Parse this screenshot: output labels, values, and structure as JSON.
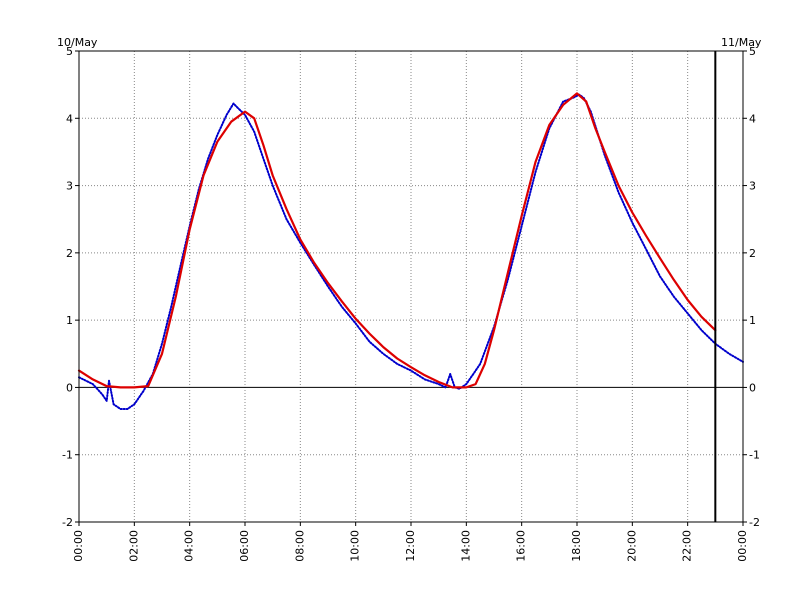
{
  "chart_data": {
    "type": "line",
    "title": "",
    "xlabel": "",
    "ylabel": "",
    "date_labels": {
      "left": "10/May",
      "right": "11/May"
    },
    "xlim": [
      "00:00",
      "24:00"
    ],
    "ylim": [
      -2,
      5
    ],
    "x_tick_labels": [
      "00:00",
      "02:00",
      "04:00",
      "06:00",
      "08:00",
      "10:00",
      "12:00",
      "14:00",
      "16:00",
      "18:00",
      "20:00",
      "22:00",
      "00:00"
    ],
    "y_tick_labels": [
      "-2",
      "-1",
      "0",
      "1",
      "2",
      "3",
      "4",
      "5"
    ],
    "y_ticks": [
      -2,
      -1,
      0,
      1,
      2,
      3,
      4,
      5
    ],
    "grid": true,
    "grid_style": "dotted",
    "now_marker": {
      "x": "23:00",
      "color": "#000000"
    },
    "series": [
      {
        "style": "dotted",
        "color": "#0000cc",
        "points": [
          [
            "00:00",
            0.15
          ],
          [
            "00:30",
            0.05
          ],
          [
            "00:50",
            -0.1
          ],
          [
            "01:00",
            -0.2
          ],
          [
            "01:05",
            0.1
          ],
          [
            "01:15",
            -0.25
          ],
          [
            "01:30",
            -0.32
          ],
          [
            "01:45",
            -0.32
          ],
          [
            "02:00",
            -0.25
          ],
          [
            "02:20",
            -0.05
          ],
          [
            "02:40",
            0.2
          ],
          [
            "03:00",
            0.65
          ],
          [
            "03:20",
            1.2
          ],
          [
            "03:40",
            1.8
          ],
          [
            "04:00",
            2.4
          ],
          [
            "04:20",
            2.95
          ],
          [
            "04:40",
            3.4
          ],
          [
            "05:00",
            3.75
          ],
          [
            "05:20",
            4.05
          ],
          [
            "05:35",
            4.22
          ],
          [
            "05:45",
            4.15
          ],
          [
            "06:00",
            4.05
          ],
          [
            "06:20",
            3.8
          ],
          [
            "06:40",
            3.4
          ],
          [
            "07:00",
            3.0
          ],
          [
            "07:30",
            2.5
          ],
          [
            "08:00",
            2.15
          ],
          [
            "08:30",
            1.82
          ],
          [
            "09:00",
            1.5
          ],
          [
            "09:30",
            1.2
          ],
          [
            "10:00",
            0.95
          ],
          [
            "10:30",
            0.68
          ],
          [
            "11:00",
            0.5
          ],
          [
            "11:30",
            0.35
          ],
          [
            "12:00",
            0.25
          ],
          [
            "12:30",
            0.12
          ],
          [
            "13:00",
            0.05
          ],
          [
            "13:15",
            0.0
          ],
          [
            "13:25",
            0.2
          ],
          [
            "13:35",
            0.0
          ],
          [
            "13:45",
            -0.02
          ],
          [
            "14:00",
            0.05
          ],
          [
            "14:15",
            0.2
          ],
          [
            "14:30",
            0.35
          ],
          [
            "15:00",
            0.9
          ],
          [
            "15:30",
            1.6
          ],
          [
            "16:00",
            2.4
          ],
          [
            "16:30",
            3.2
          ],
          [
            "17:00",
            3.85
          ],
          [
            "17:30",
            4.25
          ],
          [
            "17:50",
            4.3
          ],
          [
            "18:05",
            4.35
          ],
          [
            "18:15",
            4.3
          ],
          [
            "18:30",
            4.1
          ],
          [
            "19:00",
            3.45
          ],
          [
            "19:30",
            2.9
          ],
          [
            "20:00",
            2.45
          ],
          [
            "20:30",
            2.05
          ],
          [
            "21:00",
            1.65
          ],
          [
            "21:30",
            1.35
          ],
          [
            "22:00",
            1.1
          ],
          [
            "22:30",
            0.85
          ],
          [
            "23:00",
            0.65
          ],
          [
            "23:30",
            0.5
          ],
          [
            "24:00",
            0.38
          ]
        ]
      },
      {
        "style": "solid",
        "color": "#dd0000",
        "points": [
          [
            "00:00",
            0.25
          ],
          [
            "00:30",
            0.12
          ],
          [
            "01:00",
            0.02
          ],
          [
            "01:30",
            0.0
          ],
          [
            "02:00",
            0.0
          ],
          [
            "02:30",
            0.02
          ],
          [
            "03:00",
            0.5
          ],
          [
            "03:30",
            1.35
          ],
          [
            "04:00",
            2.35
          ],
          [
            "04:30",
            3.15
          ],
          [
            "05:00",
            3.65
          ],
          [
            "05:30",
            3.95
          ],
          [
            "06:00",
            4.1
          ],
          [
            "06:20",
            4.0
          ],
          [
            "06:40",
            3.6
          ],
          [
            "07:00",
            3.15
          ],
          [
            "07:30",
            2.65
          ],
          [
            "08:00",
            2.2
          ],
          [
            "08:30",
            1.85
          ],
          [
            "09:00",
            1.55
          ],
          [
            "09:30",
            1.28
          ],
          [
            "10:00",
            1.02
          ],
          [
            "10:30",
            0.8
          ],
          [
            "11:00",
            0.6
          ],
          [
            "11:30",
            0.43
          ],
          [
            "12:00",
            0.3
          ],
          [
            "12:30",
            0.18
          ],
          [
            "13:00",
            0.08
          ],
          [
            "13:30",
            0.0
          ],
          [
            "14:00",
            0.0
          ],
          [
            "14:20",
            0.05
          ],
          [
            "14:40",
            0.35
          ],
          [
            "15:00",
            0.85
          ],
          [
            "15:30",
            1.7
          ],
          [
            "16:00",
            2.55
          ],
          [
            "16:30",
            3.35
          ],
          [
            "17:00",
            3.9
          ],
          [
            "17:30",
            4.2
          ],
          [
            "18:00",
            4.37
          ],
          [
            "18:20",
            4.25
          ],
          [
            "18:40",
            3.85
          ],
          [
            "19:00",
            3.5
          ],
          [
            "19:30",
            3.0
          ],
          [
            "20:00",
            2.6
          ],
          [
            "20:30",
            2.25
          ],
          [
            "21:00",
            1.92
          ],
          [
            "21:30",
            1.6
          ],
          [
            "22:00",
            1.3
          ],
          [
            "22:30",
            1.05
          ],
          [
            "23:00",
            0.85
          ]
        ]
      }
    ]
  }
}
